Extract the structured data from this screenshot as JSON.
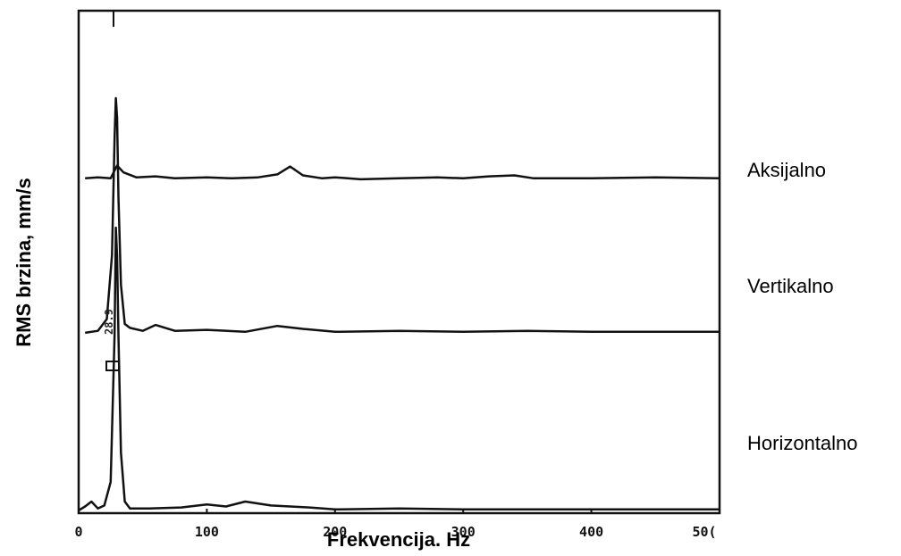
{
  "chart_data": {
    "type": "line",
    "title": "",
    "xlabel": "Frekvencija. Hz",
    "ylabel": "RMS brzina, mm/s",
    "xlim": [
      0,
      500
    ],
    "xticks": [
      "0",
      "100",
      "200",
      "300",
      "400",
      "50("
    ],
    "grid": false,
    "legend": "right",
    "peak_annotation": "28.9",
    "colors": {
      "line": "#111111",
      "frame": "#111111",
      "background": "#ffffff"
    },
    "series": [
      {
        "name": "Aksijalno",
        "x": [
          5,
          15,
          25,
          30,
          35,
          45,
          60,
          75,
          100,
          120,
          140,
          155,
          165,
          175,
          190,
          200,
          220,
          250,
          280,
          300,
          320,
          340,
          355,
          370,
          400,
          450,
          500
        ],
        "values": [
          0.2,
          0.3,
          0.2,
          1.5,
          0.8,
          0.3,
          0.4,
          0.2,
          0.3,
          0.2,
          0.3,
          0.6,
          1.4,
          0.5,
          0.2,
          0.3,
          0.1,
          0.2,
          0.3,
          0.2,
          0.4,
          0.5,
          0.2,
          0.2,
          0.2,
          0.3,
          0.2
        ]
      },
      {
        "name": "Vertikalno",
        "x": [
          5,
          15,
          22,
          26,
          28,
          29,
          30,
          31,
          33,
          36,
          40,
          50,
          60,
          75,
          100,
          130,
          155,
          175,
          200,
          250,
          300,
          350,
          400,
          450,
          500
        ],
        "values": [
          0.1,
          0.3,
          1.5,
          8.0,
          20.0,
          24.0,
          22.0,
          14.0,
          5.0,
          1.0,
          0.6,
          0.3,
          0.9,
          0.3,
          0.4,
          0.2,
          0.8,
          0.5,
          0.2,
          0.3,
          0.2,
          0.3,
          0.2,
          0.2,
          0.2
        ]
      },
      {
        "name": "Horizontalno",
        "x": [
          0,
          5,
          10,
          15,
          20,
          25,
          28,
          29,
          30,
          31,
          33,
          36,
          40,
          55,
          80,
          100,
          115,
          130,
          150,
          180,
          200,
          250,
          300,
          350,
          400,
          450,
          500
        ],
        "values": [
          0.1,
          0.5,
          1.0,
          0.3,
          0.6,
          3.0,
          18.0,
          28.9,
          26.0,
          18.0,
          6.0,
          1.0,
          0.3,
          0.3,
          0.4,
          0.7,
          0.5,
          1.0,
          0.6,
          0.4,
          0.2,
          0.3,
          0.2,
          0.2,
          0.2,
          0.2,
          0.2
        ]
      }
    ]
  }
}
